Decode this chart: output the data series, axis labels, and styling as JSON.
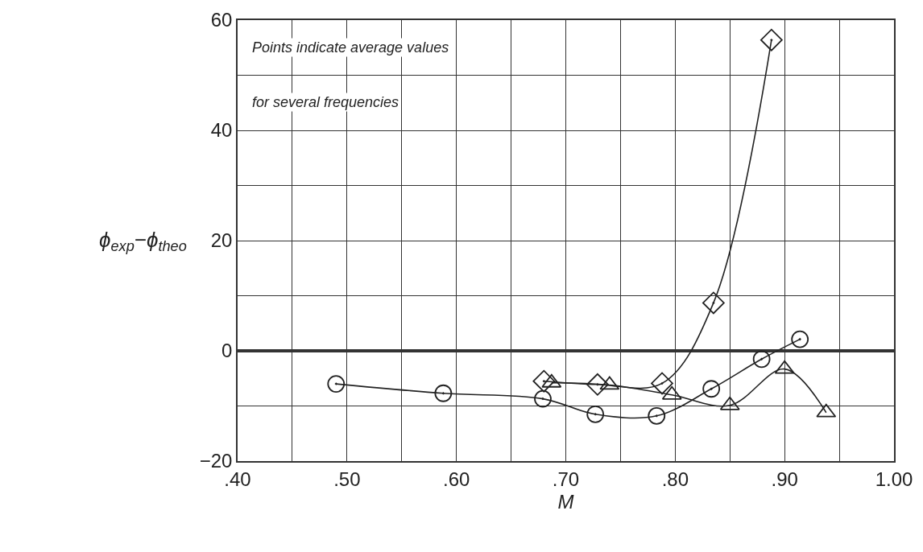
{
  "chart_data": {
    "type": "line",
    "xlabel": "M",
    "ylabel": "ϕ$_{exp}$−ϕ$_{theo}$",
    "annotations": [
      "Points indicate average values",
      "for several frequencies"
    ],
    "series": [
      {
        "color": "#222222",
        "marker": "circle",
        "x": [
          0.49,
          0.588,
          0.679,
          0.727,
          0.783,
          0.833,
          0.879,
          0.914
        ],
        "values": [
          -6.0,
          -7.7,
          -8.7,
          -11.5,
          -11.8,
          -6.9,
          -1.5,
          2.1
        ]
      },
      {
        "color": "#222222",
        "marker": "diamond",
        "x": [
          0.68,
          0.729,
          0.788,
          0.835,
          0.888
        ],
        "values": [
          -5.5,
          -6.1,
          -5.9,
          8.7,
          56.4
        ]
      },
      {
        "color": "#222222",
        "marker": "triangle",
        "x": [
          0.687,
          0.74,
          0.797,
          0.85,
          0.9,
          0.938
        ],
        "values": [
          -5.8,
          -6.2,
          -8.0,
          -9.9,
          -3.3,
          -11.2
        ]
      }
    ],
    "xlim": [
      0.4,
      1.0
    ],
    "xticks": [
      {
        "value": 0.4,
        "label": ".40"
      },
      {
        "value": 0.45,
        "label": null
      },
      {
        "value": 0.5,
        "label": ".50"
      },
      {
        "value": 0.55,
        "label": null
      },
      {
        "value": 0.6,
        "label": ".60"
      },
      {
        "value": 0.65,
        "label": null
      },
      {
        "value": 0.7,
        "label": ".70"
      },
      {
        "value": 0.75,
        "label": null
      },
      {
        "value": 0.8,
        "label": ".80"
      },
      {
        "value": 0.85,
        "label": null
      },
      {
        "value": 0.9,
        "label": ".90"
      },
      {
        "value": 0.95,
        "label": null
      },
      {
        "value": 1.0,
        "label": "1.00"
      }
    ],
    "ylim": [
      -20,
      60
    ],
    "yticks": [
      {
        "value": -20,
        "label": "−20"
      },
      {
        "value": -10,
        "label": null
      },
      0,
      {
        "value": 10,
        "label": null
      },
      20,
      {
        "value": 30,
        "label": null
      },
      40,
      {
        "value": 50,
        "label": null
      },
      60
    ],
    "ref_lines": [
      {
        "axis": "y",
        "value": 0,
        "color": "#333333"
      }
    ],
    "grid": true,
    "line_style": "solid"
  }
}
